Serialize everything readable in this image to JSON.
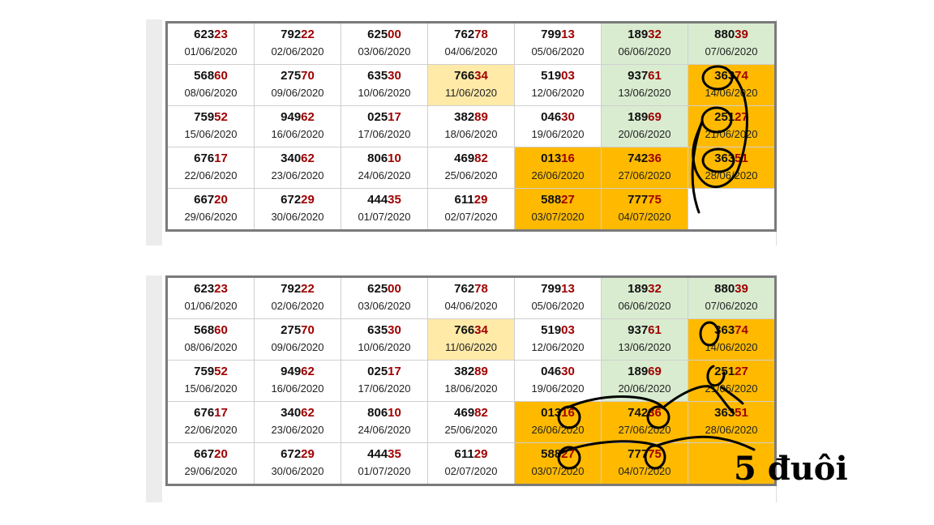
{
  "tables": [
    {
      "rows": [
        [
          {
            "prefix": "623",
            "tail": "23",
            "date": "01/06/2020",
            "bg": "white"
          },
          {
            "prefix": "792",
            "tail": "22",
            "date": "02/06/2020",
            "bg": "white"
          },
          {
            "prefix": "625",
            "tail": "00",
            "date": "03/06/2020",
            "bg": "white"
          },
          {
            "prefix": "762",
            "tail": "78",
            "date": "04/06/2020",
            "bg": "white"
          },
          {
            "prefix": "799",
            "tail": "13",
            "date": "05/06/2020",
            "bg": "white"
          },
          {
            "prefix": "189",
            "tail": "32",
            "date": "06/06/2020",
            "bg": "green"
          },
          {
            "prefix": "880",
            "tail": "39",
            "date": "07/06/2020",
            "bg": "green"
          }
        ],
        [
          {
            "prefix": "568",
            "tail": "60",
            "date": "08/06/2020",
            "bg": "white"
          },
          {
            "prefix": "275",
            "tail": "70",
            "date": "09/06/2020",
            "bg": "white"
          },
          {
            "prefix": "635",
            "tail": "30",
            "date": "10/06/2020",
            "bg": "white"
          },
          {
            "prefix": "766",
            "tail": "34",
            "date": "11/06/2020",
            "bg": "lightyellow"
          },
          {
            "prefix": "519",
            "tail": "03",
            "date": "12/06/2020",
            "bg": "white"
          },
          {
            "prefix": "937",
            "tail": "61",
            "date": "13/06/2020",
            "bg": "green"
          },
          {
            "prefix": "363",
            "tail": "74",
            "date": "14/06/2020",
            "bg": "orange"
          }
        ],
        [
          {
            "prefix": "759",
            "tail": "52",
            "date": "15/06/2020",
            "bg": "white"
          },
          {
            "prefix": "949",
            "tail": "62",
            "date": "16/06/2020",
            "bg": "white"
          },
          {
            "prefix": "025",
            "tail": "17",
            "date": "17/06/2020",
            "bg": "white"
          },
          {
            "prefix": "382",
            "tail": "89",
            "date": "18/06/2020",
            "bg": "white"
          },
          {
            "prefix": "046",
            "tail": "30",
            "date": "19/06/2020",
            "bg": "white"
          },
          {
            "prefix": "189",
            "tail": "69",
            "date": "20/06/2020",
            "bg": "green"
          },
          {
            "prefix": "251",
            "tail": "27",
            "date": "21/06/2020",
            "bg": "orange"
          }
        ],
        [
          {
            "prefix": "676",
            "tail": "17",
            "date": "22/06/2020",
            "bg": "white"
          },
          {
            "prefix": "340",
            "tail": "62",
            "date": "23/06/2020",
            "bg": "white"
          },
          {
            "prefix": "806",
            "tail": "10",
            "date": "24/06/2020",
            "bg": "white"
          },
          {
            "prefix": "469",
            "tail": "82",
            "date": "25/06/2020",
            "bg": "white"
          },
          {
            "prefix": "013",
            "tail": "16",
            "date": "26/06/2020",
            "bg": "orange"
          },
          {
            "prefix": "742",
            "tail": "36",
            "date": "27/06/2020",
            "bg": "orange"
          },
          {
            "prefix": "363",
            "tail": "51",
            "date": "28/06/2020",
            "bg": "orange"
          }
        ],
        [
          {
            "prefix": "667",
            "tail": "20",
            "date": "29/06/2020",
            "bg": "white"
          },
          {
            "prefix": "672",
            "tail": "29",
            "date": "30/06/2020",
            "bg": "white"
          },
          {
            "prefix": "444",
            "tail": "35",
            "date": "01/07/2020",
            "bg": "white"
          },
          {
            "prefix": "611",
            "tail": "29",
            "date": "02/07/2020",
            "bg": "white"
          },
          {
            "prefix": "588",
            "tail": "27",
            "date": "03/07/2020",
            "bg": "orange"
          },
          {
            "prefix": "777",
            "tail": "75",
            "date": "04/07/2020",
            "bg": "orange"
          },
          {
            "prefix": "",
            "tail": "",
            "date": "",
            "bg": "white"
          }
        ]
      ]
    },
    {
      "rows": [
        [
          {
            "prefix": "623",
            "tail": "23",
            "date": "01/06/2020",
            "bg": "white"
          },
          {
            "prefix": "792",
            "tail": "22",
            "date": "02/06/2020",
            "bg": "white"
          },
          {
            "prefix": "625",
            "tail": "00",
            "date": "03/06/2020",
            "bg": "white"
          },
          {
            "prefix": "762",
            "tail": "78",
            "date": "04/06/2020",
            "bg": "white"
          },
          {
            "prefix": "799",
            "tail": "13",
            "date": "05/06/2020",
            "bg": "white"
          },
          {
            "prefix": "189",
            "tail": "32",
            "date": "06/06/2020",
            "bg": "green"
          },
          {
            "prefix": "880",
            "tail": "39",
            "date": "07/06/2020",
            "bg": "green"
          }
        ],
        [
          {
            "prefix": "568",
            "tail": "60",
            "date": "08/06/2020",
            "bg": "white"
          },
          {
            "prefix": "275",
            "tail": "70",
            "date": "09/06/2020",
            "bg": "white"
          },
          {
            "prefix": "635",
            "tail": "30",
            "date": "10/06/2020",
            "bg": "white"
          },
          {
            "prefix": "766",
            "tail": "34",
            "date": "11/06/2020",
            "bg": "lightyellow"
          },
          {
            "prefix": "519",
            "tail": "03",
            "date": "12/06/2020",
            "bg": "white"
          },
          {
            "prefix": "937",
            "tail": "61",
            "date": "13/06/2020",
            "bg": "green"
          },
          {
            "prefix": "363",
            "tail": "74",
            "date": "14/06/2020",
            "bg": "orange"
          }
        ],
        [
          {
            "prefix": "759",
            "tail": "52",
            "date": "15/06/2020",
            "bg": "white"
          },
          {
            "prefix": "949",
            "tail": "62",
            "date": "16/06/2020",
            "bg": "white"
          },
          {
            "prefix": "025",
            "tail": "17",
            "date": "17/06/2020",
            "bg": "white"
          },
          {
            "prefix": "382",
            "tail": "89",
            "date": "18/06/2020",
            "bg": "white"
          },
          {
            "prefix": "046",
            "tail": "30",
            "date": "19/06/2020",
            "bg": "white"
          },
          {
            "prefix": "189",
            "tail": "69",
            "date": "20/06/2020",
            "bg": "green"
          },
          {
            "prefix": "251",
            "tail": "27",
            "date": "21/06/2020",
            "bg": "orange"
          }
        ],
        [
          {
            "prefix": "676",
            "tail": "17",
            "date": "22/06/2020",
            "bg": "white"
          },
          {
            "prefix": "340",
            "tail": "62",
            "date": "23/06/2020",
            "bg": "white"
          },
          {
            "prefix": "806",
            "tail": "10",
            "date": "24/06/2020",
            "bg": "white"
          },
          {
            "prefix": "469",
            "tail": "82",
            "date": "25/06/2020",
            "bg": "white"
          },
          {
            "prefix": "013",
            "tail": "16",
            "date": "26/06/2020",
            "bg": "orange"
          },
          {
            "prefix": "742",
            "tail": "36",
            "date": "27/06/2020",
            "bg": "orange"
          },
          {
            "prefix": "363",
            "tail": "51",
            "date": "28/06/2020",
            "bg": "orange"
          }
        ],
        [
          {
            "prefix": "667",
            "tail": "20",
            "date": "29/06/2020",
            "bg": "white"
          },
          {
            "prefix": "672",
            "tail": "29",
            "date": "30/06/2020",
            "bg": "white"
          },
          {
            "prefix": "444",
            "tail": "35",
            "date": "01/07/2020",
            "bg": "white"
          },
          {
            "prefix": "611",
            "tail": "29",
            "date": "02/07/2020",
            "bg": "white"
          },
          {
            "prefix": "588",
            "tail": "27",
            "date": "03/07/2020",
            "bg": "orange"
          },
          {
            "prefix": "777",
            "tail": "75",
            "date": "04/07/2020",
            "bg": "orange"
          },
          {
            "prefix": "",
            "tail": "",
            "date": "",
            "bg": "orange"
          }
        ]
      ]
    }
  ],
  "handwritten_note": "5 đuôi",
  "colors": {
    "green": "#d9ecd0",
    "orange": "#ffba00",
    "lightyellow": "#ffeaa8",
    "tail_red": "#a00000",
    "ink": "#000000"
  }
}
